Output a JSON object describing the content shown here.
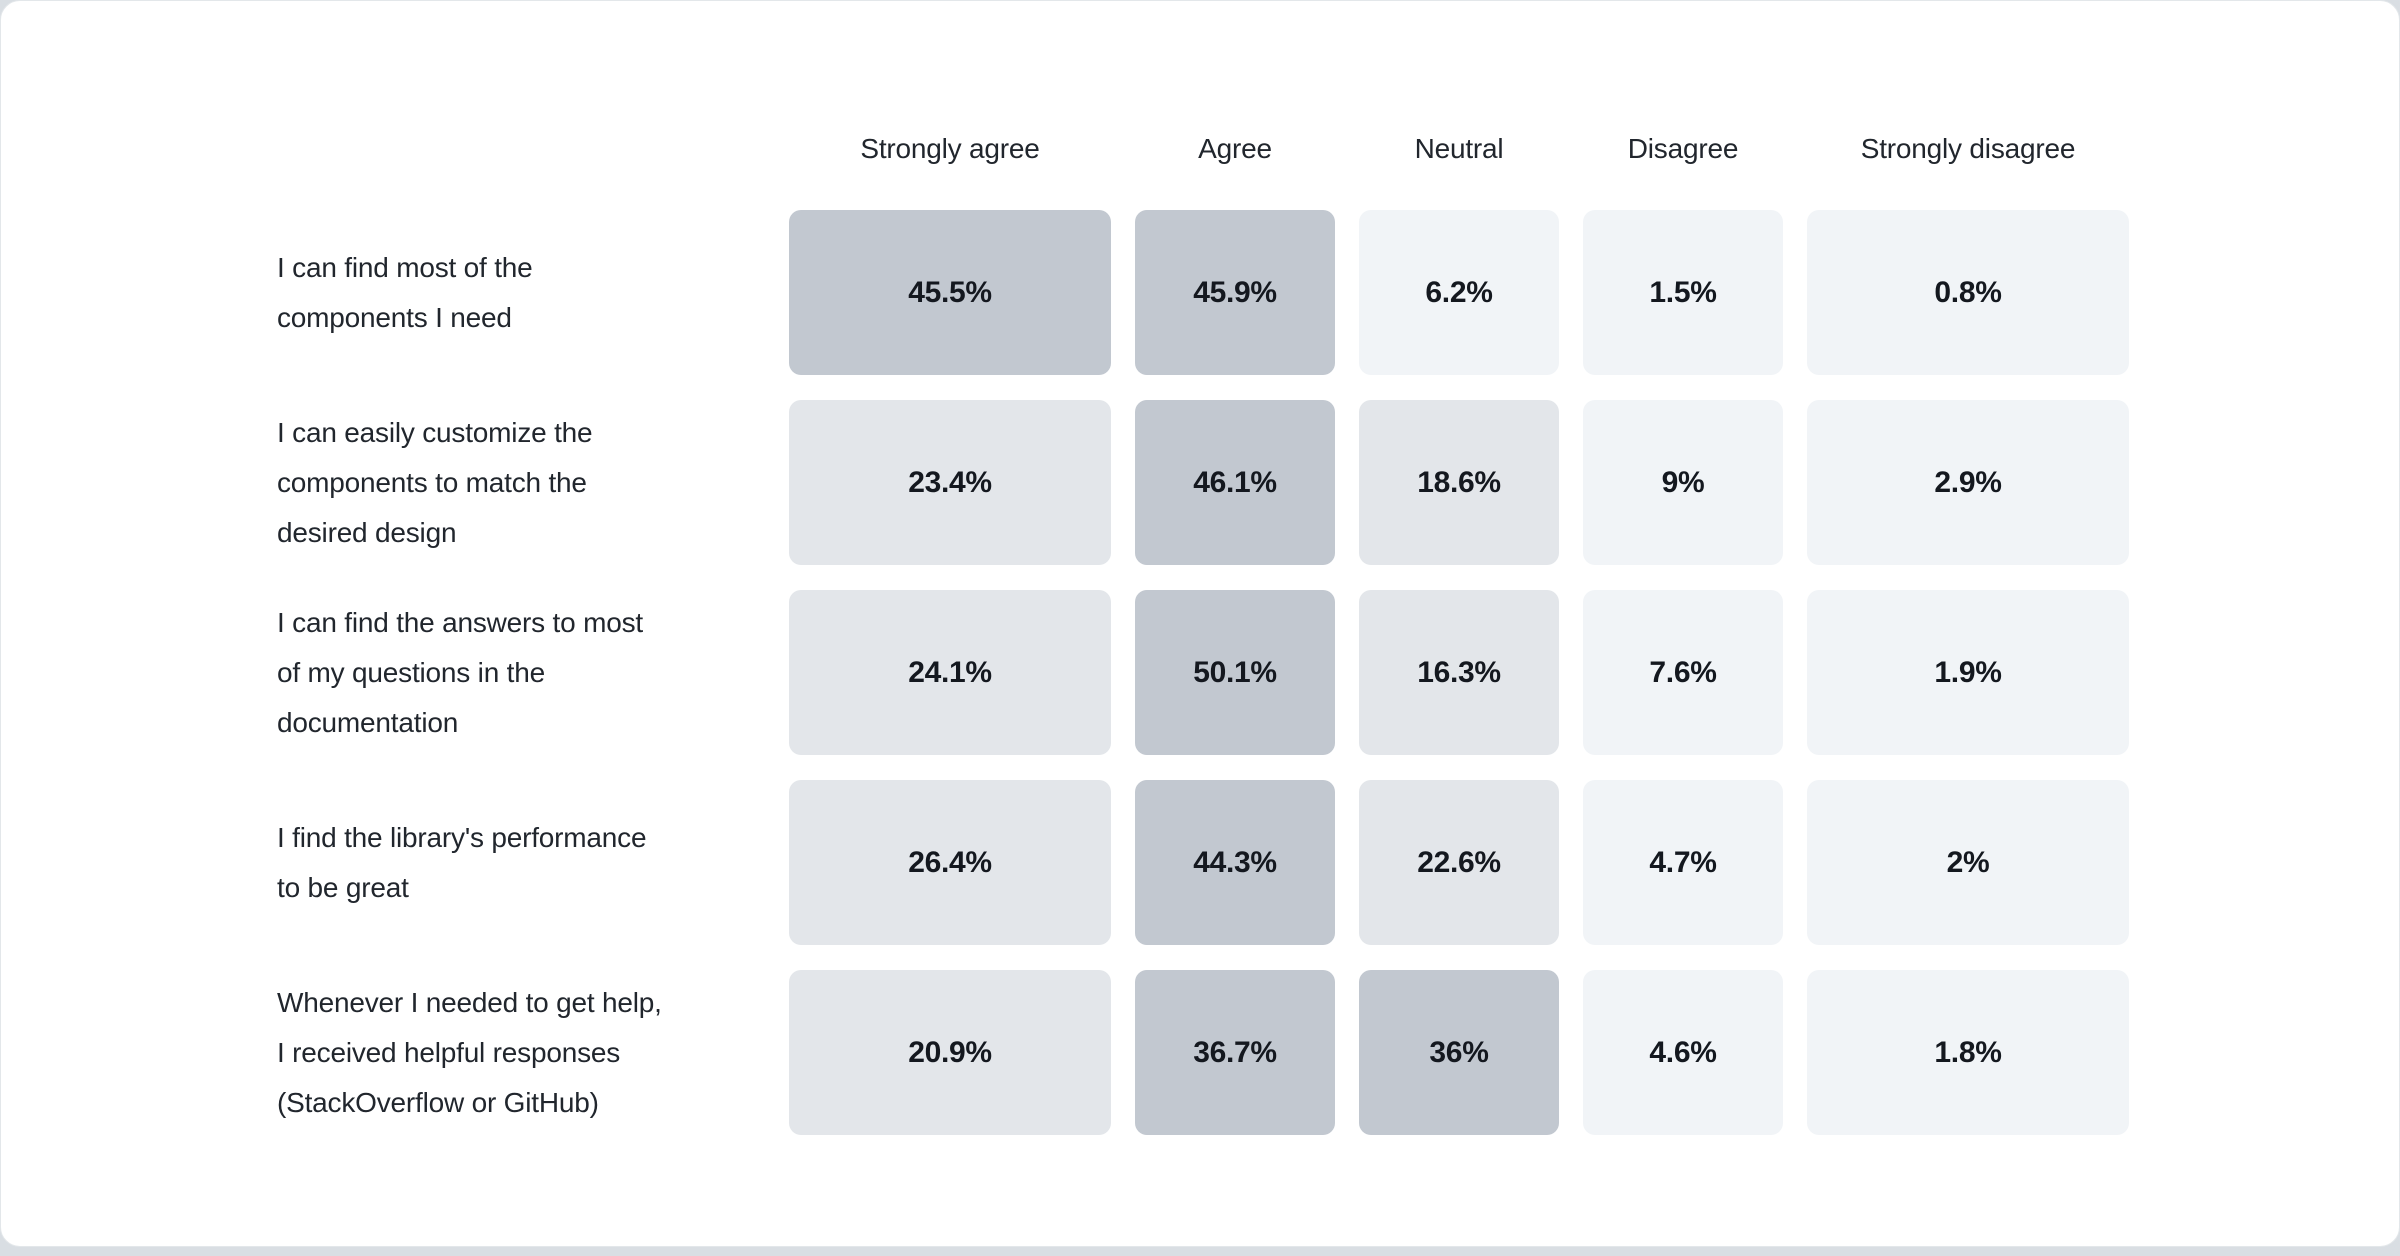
{
  "theme": {
    "page_bg": "#d9dee3",
    "card_bg": "#ffffff",
    "card_border": "#e3e7ea",
    "text": "#21262d",
    "value_text": "#14181f",
    "cell_high": "#c2c8d0",
    "cell_mid": "#e3e6ea",
    "cell_low": "#f1f4f7",
    "high_threshold": 30,
    "mid_threshold": 10
  },
  "chart_data": {
    "type": "heatmap",
    "title": "",
    "legend_position": "none",
    "columns": [
      "Strongly agree",
      "Agree",
      "Neutral",
      "Disagree",
      "Strongly disagree"
    ],
    "rows": [
      {
        "label": "I can find most of the components I need",
        "label_display": "I can find most of the\ncomponents I need",
        "values": [
          45.5,
          45.9,
          6.2,
          1.5,
          0.8
        ],
        "labels": [
          "45.5%",
          "45.9%",
          "6.2%",
          "1.5%",
          "0.8%"
        ]
      },
      {
        "label": "I can easily customize the components to match the desired design",
        "label_display": "I can easily customize the\ncomponents to match the\ndesired design",
        "values": [
          23.4,
          46.1,
          18.6,
          9,
          2.9
        ],
        "labels": [
          "23.4%",
          "46.1%",
          "18.6%",
          "9%",
          "2.9%"
        ]
      },
      {
        "label": "I can find the answers to most of my questions in the documentation",
        "label_display": "I can find the answers to most\nof my questions in the\ndocumentation",
        "values": [
          24.1,
          50.1,
          16.3,
          7.6,
          1.9
        ],
        "labels": [
          "24.1%",
          "50.1%",
          "16.3%",
          "7.6%",
          "1.9%"
        ]
      },
      {
        "label": "I find the library's performance to be great",
        "label_display": "I find the library's performance\nto be great",
        "values": [
          26.4,
          44.3,
          22.6,
          4.7,
          2
        ],
        "labels": [
          "26.4%",
          "44.3%",
          "22.6%",
          "4.7%",
          "2%"
        ]
      },
      {
        "label": "Whenever I needed to get help, I received helpful responses (StackOverflow or GitHub)",
        "label_display": "Whenever I needed to get help,\nI received helpful responses\n(StackOverflow or GitHub)",
        "values": [
          20.9,
          36.7,
          36,
          4.6,
          1.8
        ],
        "labels": [
          "20.9%",
          "36.7%",
          "36%",
          "4.6%",
          "1.8%"
        ]
      }
    ]
  }
}
